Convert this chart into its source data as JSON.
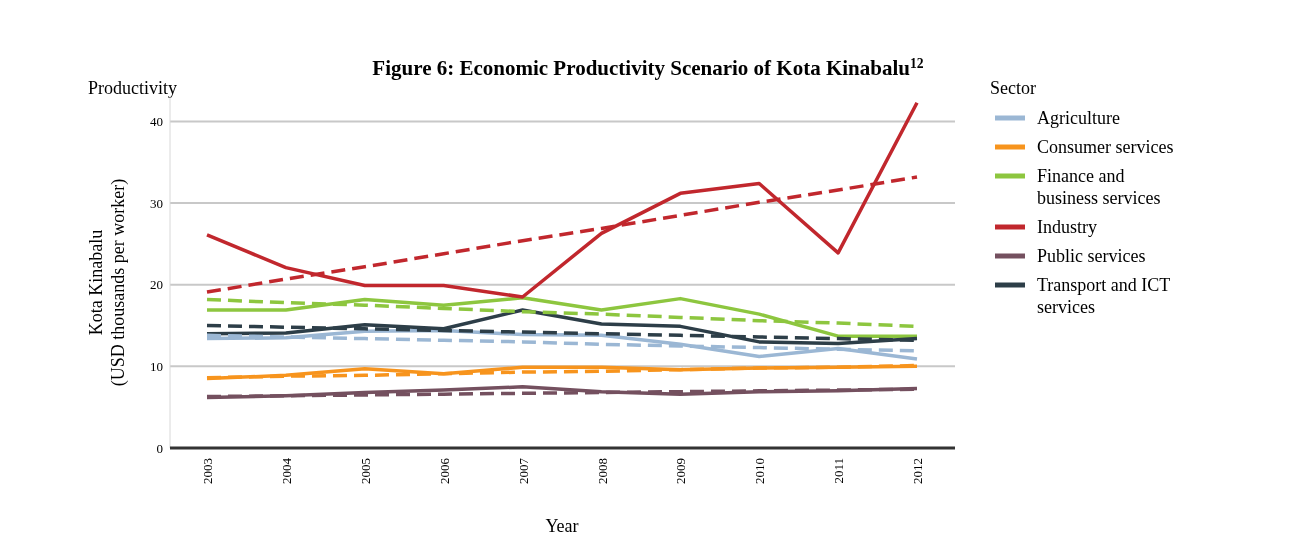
{
  "chart_data": {
    "type": "line",
    "title": "Figure 6: Economic Productivity Scenario of Kota Kinabalu$^{12}$",
    "annotations": [
      "Productivity"
    ],
    "xlabel": "Year",
    "ylabel": "Kota Kinabalu\n(USD thousands per worker)",
    "legend_title": "Sector",
    "categories": [
      "2003",
      "2004",
      "2005",
      "2006",
      "2007",
      "2008",
      "2009",
      "2010",
      "2011",
      "2012"
    ],
    "ylim": [
      0,
      43
    ],
    "yticks": [
      0,
      10,
      20,
      30,
      40
    ],
    "grid": "y",
    "legend": "right",
    "line_style": "solid",
    "series": [
      {
        "name": "Agriculture",
        "color": "#9bb7d4",
        "values": [
          13.4,
          13.5,
          14.3,
          14.4,
          13.9,
          13.8,
          12.7,
          11.2,
          12.2,
          10.9
        ]
      },
      {
        "name": "Consumer services",
        "color": "#f7941d",
        "values": [
          8.5,
          8.9,
          9.7,
          9.1,
          9.9,
          9.9,
          9.6,
          9.8,
          9.9,
          10.0
        ]
      },
      {
        "name": "Finance and\nbusiness services",
        "color": "#8dc63f",
        "values": [
          16.9,
          16.9,
          18.2,
          17.5,
          18.4,
          16.9,
          18.3,
          16.4,
          13.7,
          13.7
        ]
      },
      {
        "name": "Industry",
        "color": "#c1272d",
        "values": [
          26.1,
          22.1,
          19.9,
          19.9,
          18.5,
          26.3,
          31.2,
          32.4,
          23.9,
          42.3
        ]
      },
      {
        "name": "Public services",
        "color": "#74505f",
        "values": [
          6.2,
          6.4,
          6.8,
          7.1,
          7.5,
          6.9,
          6.6,
          6.9,
          7.0,
          7.3
        ]
      },
      {
        "name": "Transport and ICT\nservices",
        "color": "#2d3e48",
        "values": [
          14.0,
          14.1,
          15.1,
          14.6,
          16.9,
          15.2,
          14.9,
          13.0,
          12.8,
          13.4
        ]
      },
      {
        "type": "line",
        "color": "#9bb7d4",
        "line_style": "dashed",
        "values": [
          13.8,
          13.6,
          13.4,
          13.2,
          13.0,
          12.7,
          12.5,
          12.3,
          12.1,
          11.9
        ]
      },
      {
        "type": "line",
        "color": "#f7941d",
        "line_style": "dashed",
        "values": [
          8.6,
          8.8,
          8.9,
          9.1,
          9.3,
          9.4,
          9.6,
          9.8,
          9.9,
          10.1
        ]
      },
      {
        "type": "line",
        "color": "#8dc63f",
        "line_style": "dashed",
        "values": [
          18.2,
          17.8,
          17.5,
          17.1,
          16.7,
          16.4,
          16.0,
          15.6,
          15.3,
          14.9
        ]
      },
      {
        "type": "line",
        "color": "#c1272d",
        "line_style": "dashed",
        "values": [
          19.1,
          20.7,
          22.2,
          23.8,
          25.4,
          26.9,
          28.5,
          30.1,
          31.6,
          33.2
        ]
      },
      {
        "type": "line",
        "color": "#74505f",
        "line_style": "dashed",
        "values": [
          6.3,
          6.4,
          6.5,
          6.6,
          6.7,
          6.8,
          6.9,
          7.0,
          7.1,
          7.2
        ]
      },
      {
        "type": "line",
        "color": "#2d3e48",
        "line_style": "dashed",
        "values": [
          15.0,
          14.8,
          14.6,
          14.4,
          14.2,
          14.0,
          13.8,
          13.6,
          13.4,
          13.2
        ]
      }
    ]
  }
}
